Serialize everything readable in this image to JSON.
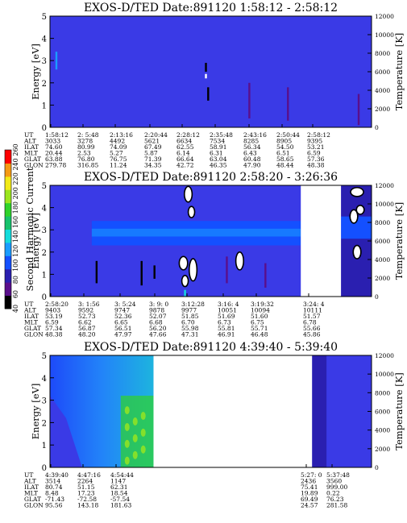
{
  "colors": {
    "background": "#3a3ae6",
    "white_gap": "#ffffff",
    "colorbar": [
      "#000000",
      "#5a0f8c",
      "#2a1fb0",
      "#1450ff",
      "#1a9cff",
      "#14dcdc",
      "#17c36c",
      "#2fd32a",
      "#9be61e",
      "#f2ea18",
      "#f59a14",
      "#ff0000"
    ]
  },
  "colorbar": {
    "title": "Second Harmonic Current",
    "ticks": [
      "40",
      "60",
      "80",
      "100",
      "120",
      "140",
      "160",
      "180",
      "200",
      "220",
      "240",
      "260"
    ]
  },
  "chart_data": [
    {
      "type": "heatmap",
      "title": "EXOS-D/TED   Date:891120   1:58:12 - 2:58:12",
      "ylabel": "Energy [eV]",
      "y2label": "Temperature [K]",
      "ylim": [
        0,
        5
      ],
      "y2lim": [
        0,
        12000
      ],
      "yticks": [
        "0",
        "1",
        "2",
        "3",
        "4",
        "5"
      ],
      "y2ticks": [
        "0",
        "2000",
        "4000",
        "6000",
        "8000",
        "10000",
        "12000"
      ],
      "grid": false,
      "gaps": [],
      "features": [
        {
          "kind": "streak",
          "x": 0.02,
          "y0": 2.6,
          "y1": 3.4,
          "color": "#1a9cff"
        },
        {
          "kind": "streak",
          "x": 0.485,
          "y0": 2.5,
          "y1": 2.9,
          "color": "#000000"
        },
        {
          "kind": "streak",
          "x": 0.492,
          "y0": 1.2,
          "y1": 1.8,
          "color": "#000000"
        },
        {
          "kind": "streak",
          "x": 0.485,
          "y0": 2.2,
          "y1": 2.4,
          "color": "#ffffff"
        },
        {
          "kind": "streak",
          "x": 0.62,
          "y0": 0.4,
          "y1": 2.0,
          "color": "#5a0f8c"
        },
        {
          "kind": "streak",
          "x": 0.74,
          "y0": 0.3,
          "y1": 1.8,
          "color": "#5a0f8c"
        },
        {
          "kind": "streak",
          "x": 0.96,
          "y0": 0.1,
          "y1": 1.5,
          "color": "#5a0f8c"
        }
      ],
      "table": {
        "labels": [
          "UT",
          "ALT",
          "ILAT",
          "MLT",
          "GLAT",
          "GLON"
        ],
        "columns": [
          [
            "1:58:12",
            "3033",
            "74.60",
            "20.44",
            "63.88",
            "279.78"
          ],
          [
            "2: 5:48",
            "3278",
            "80.99",
            "2.53",
            "76.80",
            "316.85"
          ],
          [
            "2:13:16",
            "4492",
            "74.09",
            "5.27",
            "76.75",
            "11.24"
          ],
          [
            "2:20:44",
            "5621",
            "67.49",
            "5.87",
            "71.39",
            "34.35"
          ],
          [
            "2:28:12",
            "6634",
            "62.55",
            "6.14",
            "66.64",
            "42.72"
          ],
          [
            "2:35:48",
            "7534",
            "58.91",
            "6.31",
            "63.04",
            "46.35"
          ],
          [
            "2:43:16",
            "8285",
            "56.34",
            "6.43",
            "60.48",
            "47.90"
          ],
          [
            "2:50:44",
            "8905",
            "54.50",
            "6.51",
            "58.65",
            "48.44"
          ],
          [
            "2:58:12",
            "9395",
            "53.21",
            "6.59",
            "57.36",
            "48.38"
          ]
        ]
      }
    },
    {
      "type": "heatmap",
      "title": "EXOS-D/TED   Date:891120   2:58:20 - 3:26:36",
      "ylabel": "Energy [eV]",
      "y2label": "Temperature [K]",
      "ylim": [
        0,
        5
      ],
      "y2lim": [
        0,
        12000
      ],
      "yticks": [
        "0",
        "1",
        "2",
        "3",
        "4",
        "5"
      ],
      "y2ticks": [
        "0",
        "2000",
        "4000",
        "6000",
        "8000",
        "10000",
        "12000"
      ],
      "grid": false,
      "gaps": [
        [
          0.78,
          0.905
        ]
      ],
      "band": {
        "y0": 2.3,
        "y1": 3.4,
        "x0": 0.13,
        "x1": 0.78,
        "color": "#1450ff"
      },
      "features": [
        {
          "kind": "blob",
          "x": 0.43,
          "y": 4.6,
          "rx": 0.012,
          "ry": 0.35,
          "color": "#ffffff"
        },
        {
          "kind": "blob",
          "x": 0.44,
          "y": 3.8,
          "rx": 0.01,
          "ry": 0.25,
          "color": "#ffffff"
        },
        {
          "kind": "blob",
          "x": 0.415,
          "y": 1.5,
          "rx": 0.013,
          "ry": 0.3,
          "color": "#ffffff"
        },
        {
          "kind": "blob",
          "x": 0.445,
          "y": 1.2,
          "rx": 0.012,
          "ry": 0.5,
          "color": "#ffffff"
        },
        {
          "kind": "blob",
          "x": 0.42,
          "y": 0.7,
          "rx": 0.01,
          "ry": 0.25,
          "color": "#ffffff"
        },
        {
          "kind": "blob",
          "x": 0.59,
          "y": 1.6,
          "rx": 0.012,
          "ry": 0.4,
          "color": "#ffffff"
        },
        {
          "kind": "blob",
          "x": 0.955,
          "y": 4.7,
          "rx": 0.02,
          "ry": 0.2,
          "color": "#ffffff"
        },
        {
          "kind": "blob",
          "x": 0.945,
          "y": 3.6,
          "rx": 0.012,
          "ry": 0.3,
          "color": "#ffffff"
        },
        {
          "kind": "blob",
          "x": 0.965,
          "y": 3.9,
          "rx": 0.012,
          "ry": 0.2,
          "color": "#ffffff"
        },
        {
          "kind": "blob",
          "x": 0.955,
          "y": 2.0,
          "rx": 0.012,
          "ry": 0.3,
          "color": "#ffffff"
        },
        {
          "kind": "streak",
          "x": 0.145,
          "y0": 0.6,
          "y1": 1.6,
          "color": "#000000"
        },
        {
          "kind": "streak",
          "x": 0.285,
          "y0": 0.5,
          "y1": 1.6,
          "color": "#000000"
        },
        {
          "kind": "streak",
          "x": 0.325,
          "y0": 0.8,
          "y1": 1.4,
          "color": "#000000"
        },
        {
          "kind": "streak",
          "x": 0.83,
          "y0": 0.6,
          "y1": 1.3,
          "color": "#000000"
        },
        {
          "kind": "streak",
          "x": 0.55,
          "y0": 0.6,
          "y1": 1.8,
          "color": "#5a0f8c"
        },
        {
          "kind": "streak",
          "x": 0.67,
          "y0": 0.4,
          "y1": 1.5,
          "color": "#5a0f8c"
        },
        {
          "kind": "streak",
          "x": 0.42,
          "y0": 0.0,
          "y1": 0.3,
          "color": "#14dcdc"
        }
      ],
      "table": {
        "labels": [
          "UT",
          "ALT",
          "ILAT",
          "MLT",
          "GLAT",
          "GLON"
        ],
        "columns": [
          [
            "2:58:20",
            "9403",
            "53.19",
            "6.59",
            "57.34",
            "48.38"
          ],
          [
            "3: 1:56",
            "9592",
            "52.73",
            "6.62",
            "56.87",
            "48.20"
          ],
          [
            "3: 5:24",
            "9747",
            "52.36",
            "6.65",
            "56.51",
            "47.97"
          ],
          [
            "3: 9: 0",
            "9878",
            "52.07",
            "6.68",
            "56.20",
            "47.66"
          ],
          [
            "3:12:28",
            "9977",
            "51.85",
            "6.70",
            "55.98",
            "47.31"
          ],
          [
            "3:16: 4",
            "10051",
            "51.69",
            "6.73",
            "55.81",
            "46.91"
          ],
          [
            "3:19:32",
            "10094",
            "51.60",
            "6.75",
            "55.71",
            "46.48"
          ],
          [
            "3:24: 4",
            "10111",
            "51.57",
            "6.78",
            "55.66",
            "45.86"
          ]
        ]
      }
    },
    {
      "type": "heatmap",
      "title": "EXOS-D/TED   Date:891120   4:39:40 - 5:39:40",
      "ylabel": "Energy [eV]",
      "y2label": "Temperature [K]",
      "ylim": [
        0,
        5
      ],
      "y2lim": [
        0,
        12000
      ],
      "yticks": [
        "0",
        "1",
        "2",
        "3",
        "4",
        "5"
      ],
      "y2ticks": [
        "0",
        "2000",
        "4000",
        "6000",
        "8000",
        "10000",
        "12000"
      ],
      "grid": false,
      "gaps": [
        [
          0.322,
          0.815
        ]
      ],
      "features": [],
      "table": {
        "labels": [
          "UT",
          "ALT",
          "ILAT",
          "MLT",
          "GLAT",
          "GLON"
        ],
        "columns": [
          [
            "4:39:40",
            "3514",
            "80.74",
            "8.48",
            "-71.43",
            "95.56"
          ],
          [
            "4:47:16",
            "2264",
            "51.15",
            "17.23",
            "-72.58",
            "143.18"
          ],
          [
            "4:54:44",
            "1147",
            "62.31",
            "18.54",
            "-57.54",
            "181.63"
          ],
          [
            "5:27: 0",
            "2436",
            "75.41",
            "19.89",
            "69.49",
            "24.57"
          ],
          [
            "5:37:48",
            "3560",
            "999.00",
            "0.22",
            "76.23",
            "281.58"
          ]
        ]
      }
    }
  ]
}
